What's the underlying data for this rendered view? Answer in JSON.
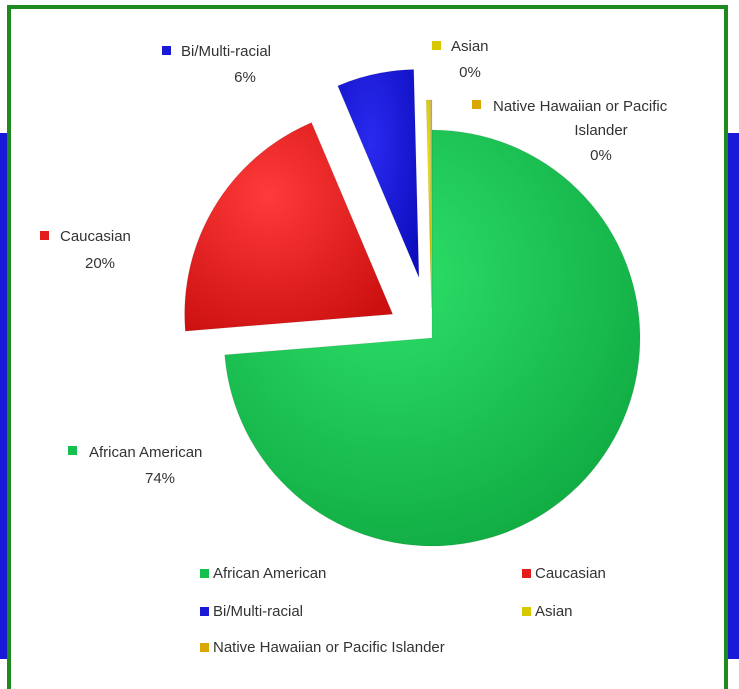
{
  "chart_data": {
    "type": "pie",
    "exploded": true,
    "categories": [
      "African American",
      "Caucasian",
      "Bi/Multi-racial",
      "Asian",
      "Native Hawaiian or Pacific Islander"
    ],
    "values": [
      74,
      20,
      6,
      0.3,
      0.1
    ],
    "value_labels": [
      "74%",
      "20%",
      "6%",
      "0%",
      "0%"
    ],
    "legend": {
      "position": "bottom",
      "entries": [
        "African American",
        "Caucasian",
        "Bi/Multi-racial",
        "Asian",
        "Native Hawaiian or Pacific Islander"
      ]
    },
    "colors": [
      "#14c04e",
      "#e51c1c",
      "#1a1ad6",
      "#d8c800",
      "#d8a800"
    ]
  },
  "labels": {
    "african_american": {
      "name": "African American",
      "pct": "74%"
    },
    "caucasian": {
      "name": "Caucasian",
      "pct": "20%"
    },
    "bi_multi": {
      "name": "Bi/Multi-racial",
      "pct": "6%"
    },
    "asian": {
      "name": "Asian",
      "pct": "0%"
    },
    "native_hawaiian": {
      "name_line1": "Native Hawaiian or Pacific",
      "name_line2": "Islander",
      "pct": "0%"
    }
  }
}
